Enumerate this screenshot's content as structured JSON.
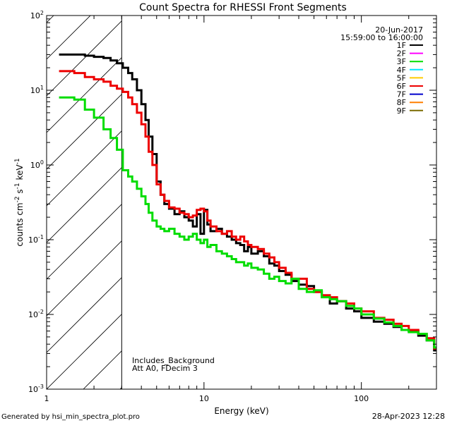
{
  "chart_data": {
    "type": "line",
    "title": "Count Spectra for RHESSI Front Segments",
    "xlabel": "Energy (keV)",
    "ylabel_parts": {
      "counts": "counts cm",
      "e1": "-2",
      "s": " s",
      "e2": "-1",
      "kev": " keV",
      "e3": "-1"
    },
    "x_scale": "log",
    "y_scale": "log",
    "xlim": [
      1,
      300
    ],
    "ylim": [
      0.001,
      100
    ],
    "x_tick_labels": [
      {
        "value": 1,
        "label": "1"
      },
      {
        "value": 10,
        "label": "10"
      },
      {
        "value": 100,
        "label": "100"
      }
    ],
    "y_tick_labels": [
      {
        "value": 100,
        "base": "10",
        "exp": "2"
      },
      {
        "value": 10,
        "base": "10",
        "exp": "1"
      },
      {
        "value": 1,
        "base": "10",
        "exp": "0"
      },
      {
        "value": 0.1,
        "base": "10",
        "exp": "-1"
      },
      {
        "value": 0.01,
        "base": "10",
        "exp": "-2"
      },
      {
        "value": 0.001,
        "base": "10",
        "exp": "-3"
      }
    ],
    "date": "20-Jun-2017",
    "time_range": "15:59:00 to 16:00:00",
    "shaded_region": {
      "x_from": 1,
      "x_to": 3,
      "style": "diagonal hatch"
    },
    "annotations": [
      "Includes_Background",
      "Att A0, FDecim 3"
    ],
    "legend": [
      {
        "label": "1F",
        "color": "#000000"
      },
      {
        "label": "2F",
        "color": "#ff00ff"
      },
      {
        "label": "3F",
        "color": "#00dd00"
      },
      {
        "label": "4F",
        "color": "#00e5ff"
      },
      {
        "label": "5F",
        "color": "#ffcc00"
      },
      {
        "label": "6F",
        "color": "#ee0000"
      },
      {
        "label": "7F",
        "color": "#0000cc"
      },
      {
        "label": "8F",
        "color": "#ff7f00"
      },
      {
        "label": "9F",
        "color": "#7a6a00"
      }
    ],
    "series": [
      {
        "name": "1F",
        "color": "#000000",
        "x": [
          1.2,
          1.5,
          1.75,
          2.0,
          2.3,
          2.55,
          2.8,
          3.05,
          3.3,
          3.5,
          3.75,
          4.0,
          4.25,
          4.45,
          4.7,
          5.0,
          5.3,
          5.6,
          6.0,
          6.5,
          7.0,
          7.5,
          8.0,
          8.5,
          9.0,
          9.5,
          10.0,
          10.5,
          11.0,
          12.0,
          13.0,
          14.0,
          15.0,
          16.0,
          17.0,
          18.0,
          19.0,
          20.0,
          22.0,
          24.0,
          26.0,
          28.0,
          30.0,
          33.0,
          36.0,
          40.0,
          45.0,
          50.0,
          56.0,
          63.0,
          70.0,
          80.0,
          90.0,
          100.0,
          120.0,
          140.0,
          160.0,
          180.0,
          200.0,
          230.0,
          260.0,
          290.0
        ],
        "y": [
          30,
          30,
          29,
          28,
          27,
          25,
          23,
          20,
          17,
          14,
          10,
          6.5,
          4.0,
          2.4,
          1.4,
          0.6,
          0.4,
          0.3,
          0.26,
          0.22,
          0.24,
          0.2,
          0.18,
          0.15,
          0.22,
          0.12,
          0.25,
          0.16,
          0.13,
          0.14,
          0.12,
          0.11,
          0.1,
          0.09,
          0.085,
          0.07,
          0.08,
          0.065,
          0.07,
          0.06,
          0.048,
          0.045,
          0.038,
          0.034,
          0.028,
          0.025,
          0.024,
          0.02,
          0.018,
          0.014,
          0.015,
          0.012,
          0.011,
          0.009,
          0.008,
          0.0075,
          0.0068,
          0.0062,
          0.006,
          0.0052,
          0.0045,
          0.0033
        ]
      },
      {
        "name": "6F",
        "color": "#ee0000",
        "x": [
          1.2,
          1.5,
          1.75,
          2.0,
          2.3,
          2.55,
          2.8,
          3.05,
          3.3,
          3.5,
          3.75,
          4.0,
          4.25,
          4.45,
          4.7,
          5.0,
          5.3,
          5.6,
          6.0,
          6.5,
          7.0,
          7.5,
          8.0,
          8.5,
          9.0,
          9.5,
          10.0,
          10.5,
          11.0,
          12.0,
          13.0,
          14.0,
          15.0,
          16.0,
          17.0,
          18.0,
          19.0,
          20.0,
          22.0,
          24.0,
          26.0,
          28.0,
          30.0,
          33.0,
          36.0,
          40.0,
          45.0,
          50.0,
          56.0,
          63.0,
          70.0,
          80.0,
          90.0,
          100.0,
          120.0,
          140.0,
          160.0,
          180.0,
          200.0,
          230.0,
          260.0,
          290.0
        ],
        "y": [
          18,
          17,
          15,
          14,
          13,
          11.5,
          10.5,
          9.5,
          8.0,
          6.5,
          5.0,
          3.5,
          2.4,
          1.5,
          1.0,
          0.55,
          0.4,
          0.33,
          0.27,
          0.26,
          0.23,
          0.22,
          0.2,
          0.21,
          0.25,
          0.26,
          0.24,
          0.18,
          0.15,
          0.13,
          0.12,
          0.13,
          0.11,
          0.1,
          0.11,
          0.095,
          0.085,
          0.08,
          0.075,
          0.065,
          0.058,
          0.05,
          0.042,
          0.036,
          0.03,
          0.03,
          0.022,
          0.02,
          0.018,
          0.017,
          0.015,
          0.014,
          0.012,
          0.011,
          0.009,
          0.0085,
          0.0075,
          0.007,
          0.0062,
          0.0055,
          0.0048,
          0.0035
        ]
      },
      {
        "name": "3F",
        "color": "#00dd00",
        "x": [
          1.2,
          1.5,
          1.75,
          2.0,
          2.3,
          2.55,
          2.8,
          3.05,
          3.3,
          3.5,
          3.75,
          4.0,
          4.25,
          4.45,
          4.7,
          5.0,
          5.3,
          5.6,
          6.0,
          6.5,
          7.0,
          7.5,
          8.0,
          8.5,
          9.0,
          9.5,
          10.0,
          10.5,
          11.0,
          12.0,
          13.0,
          14.0,
          15.0,
          16.0,
          17.0,
          18.0,
          19.0,
          20.0,
          22.0,
          24.0,
          26.0,
          28.0,
          30.0,
          33.0,
          36.0,
          40.0,
          45.0,
          50.0,
          56.0,
          63.0,
          70.0,
          80.0,
          90.0,
          100.0,
          120.0,
          140.0,
          160.0,
          180.0,
          200.0,
          230.0,
          260.0,
          290.0
        ],
        "y": [
          8.0,
          7.5,
          5.5,
          4.3,
          3.0,
          2.3,
          1.6,
          0.85,
          0.7,
          0.6,
          0.48,
          0.38,
          0.3,
          0.23,
          0.18,
          0.15,
          0.14,
          0.13,
          0.14,
          0.12,
          0.11,
          0.1,
          0.11,
          0.12,
          0.1,
          0.09,
          0.1,
          0.08,
          0.085,
          0.07,
          0.065,
          0.06,
          0.055,
          0.05,
          0.05,
          0.045,
          0.048,
          0.042,
          0.04,
          0.035,
          0.03,
          0.032,
          0.028,
          0.026,
          0.03,
          0.022,
          0.02,
          0.021,
          0.017,
          0.016,
          0.015,
          0.013,
          0.012,
          0.01,
          0.0088,
          0.0078,
          0.007,
          0.0062,
          0.0058,
          0.0055,
          0.0045,
          0.0036
        ]
      }
    ]
  },
  "footer": {
    "generated_by": "Generated by hsi_min_spectra_plot.pro",
    "timestamp": "28-Apr-2023 12:28"
  }
}
